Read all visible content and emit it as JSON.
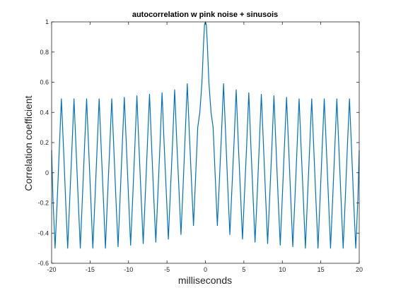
{
  "chart_data": {
    "type": "line",
    "title": "autocorrelation w pink noise + sinusois",
    "xlabel": "milliseconds",
    "ylabel": "Correlation coefficient",
    "xlim": [
      -20,
      20
    ],
    "ylim": [
      -0.6,
      1
    ],
    "xticks": [
      -20,
      -15,
      -10,
      -5,
      0,
      5,
      10,
      15,
      20
    ],
    "xtick_labels": [
      "-20",
      "-15",
      "-10",
      "-5",
      "0",
      "5",
      "10",
      "15",
      "20"
    ],
    "yticks": [
      -0.6,
      -0.4,
      -0.2,
      0,
      0.2,
      0.4,
      0.6,
      0.8,
      1
    ],
    "ytick_labels": [
      "-0.6",
      "-0.4",
      "-0.2",
      "0",
      "0.2",
      "0.4",
      "0.6",
      "0.8",
      "1"
    ],
    "grid": false,
    "legend": "none",
    "line_color": "#0072BD",
    "series": [
      {
        "x": [
          -20,
          -19.82,
          -19.55,
          -19.27,
          -19,
          -18.73,
          -18.45,
          -18.18,
          -17.91,
          -17.64,
          -17.36,
          -17.09,
          -16.82,
          -16.55,
          -16.27,
          -16,
          -15.73,
          -15.45,
          -15.18,
          -14.91,
          -14.64,
          -14.36,
          -14.09,
          -13.82,
          -13.55,
          -13.27,
          -13,
          -12.73,
          -12.45,
          -12.18,
          -11.91,
          -11.64,
          -11.36,
          -11.09,
          -10.82,
          -10.55,
          -10.27,
          -10,
          -9.73,
          -9.45,
          -9.18,
          -8.91,
          -8.64,
          -8.36,
          -8.09,
          -7.82,
          -7.55,
          -7.27,
          -7,
          -6.73,
          -6.45,
          -6.18,
          -5.91,
          -5.64,
          -5.36,
          -5.09,
          -4.82,
          -4.55,
          -4.27,
          -4,
          -3.73,
          -3.45,
          -3.18,
          -2.91,
          -2.64,
          -2.36,
          -2.09,
          -1.82,
          -1.55,
          -1.27,
          -1,
          -0.73,
          -0.45,
          -0.25,
          -0.12,
          0,
          0.12,
          0.25,
          0.45,
          0.73,
          1,
          1.27,
          1.55,
          1.82,
          2.09,
          2.36,
          2.64,
          2.91,
          3.18,
          3.45,
          3.73,
          4,
          4.27,
          4.55,
          4.82,
          5.09,
          5.36,
          5.64,
          5.91,
          6.18,
          6.45,
          6.73,
          7,
          7.27,
          7.55,
          7.82,
          8.09,
          8.36,
          8.64,
          8.91,
          9.18,
          9.45,
          9.73,
          10,
          10.27,
          10.55,
          10.82,
          11.09,
          11.36,
          11.64,
          11.91,
          12.18,
          12.45,
          12.73,
          13,
          13.27,
          13.55,
          13.82,
          14.09,
          14.36,
          14.64,
          14.91,
          15.18,
          15.45,
          15.73,
          16,
          16.27,
          16.55,
          16.82,
          17.09,
          17.36,
          17.64,
          17.91,
          18.18,
          18.45,
          18.73,
          19,
          19.27,
          19.55,
          19.82,
          20
        ],
        "y": [
          0.15,
          -0.18,
          -0.5,
          -0.18,
          0.16,
          0.49,
          0.16,
          -0.18,
          -0.5,
          -0.17,
          0.16,
          0.49,
          0.16,
          -0.17,
          -0.5,
          -0.17,
          0.16,
          0.49,
          0.16,
          -0.17,
          -0.5,
          -0.17,
          0.16,
          0.49,
          0.16,
          -0.17,
          -0.5,
          -0.16,
          0.16,
          0.49,
          0.16,
          -0.17,
          -0.49,
          -0.16,
          0.17,
          0.5,
          0.17,
          -0.16,
          -0.48,
          -0.16,
          0.17,
          0.51,
          0.17,
          -0.16,
          -0.47,
          -0.15,
          0.18,
          0.52,
          0.18,
          -0.15,
          -0.46,
          -0.14,
          0.18,
          0.53,
          0.18,
          -0.13,
          -0.44,
          -0.12,
          0.2,
          0.55,
          0.21,
          -0.1,
          -0.41,
          -0.1,
          0.24,
          0.59,
          0.26,
          -0.05,
          -0.35,
          -0.02,
          0.3,
          0.4,
          0.6,
          0.85,
          0.98,
          1,
          0.98,
          0.85,
          0.6,
          0.4,
          0.3,
          -0.02,
          -0.35,
          -0.05,
          0.26,
          0.59,
          0.24,
          -0.1,
          -0.41,
          -0.1,
          0.21,
          0.55,
          0.2,
          -0.12,
          -0.44,
          -0.13,
          0.18,
          0.53,
          0.18,
          -0.14,
          -0.46,
          -0.15,
          0.18,
          0.52,
          0.18,
          -0.15,
          -0.47,
          -0.16,
          0.17,
          0.51,
          0.17,
          -0.16,
          -0.48,
          -0.16,
          0.17,
          0.5,
          0.17,
          -0.16,
          -0.49,
          -0.17,
          0.16,
          0.49,
          0.16,
          -0.17,
          -0.5,
          -0.17,
          0.16,
          0.49,
          0.16,
          -0.17,
          -0.5,
          -0.17,
          0.16,
          0.49,
          0.16,
          -0.17,
          -0.5,
          -0.17,
          0.16,
          0.49,
          0.16,
          -0.18,
          -0.5,
          -0.18,
          0.16,
          0.49,
          0.16,
          -0.18,
          -0.5,
          -0.18,
          0.15
        ]
      }
    ]
  }
}
